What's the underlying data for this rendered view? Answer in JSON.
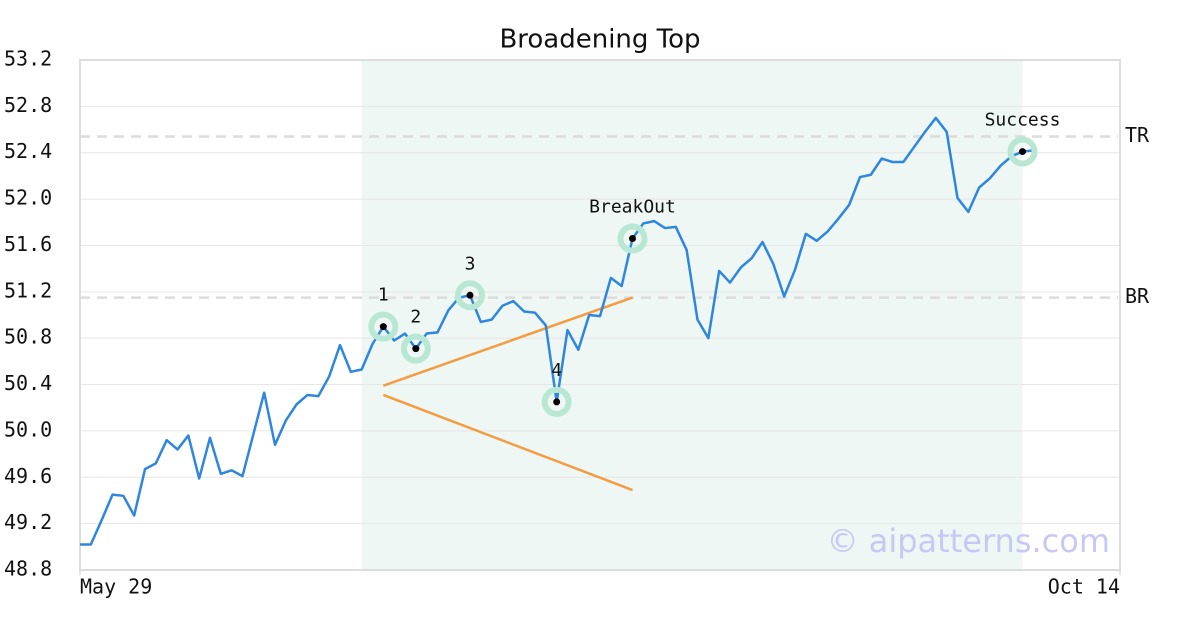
{
  "chart_data": {
    "type": "line",
    "title": "Broadening Top",
    "values": [
      49.02,
      49.02,
      49.23,
      49.45,
      49.44,
      49.27,
      49.67,
      49.72,
      49.92,
      49.84,
      49.96,
      49.59,
      49.94,
      49.63,
      49.66,
      49.61,
      49.97,
      50.33,
      49.88,
      50.09,
      50.23,
      50.31,
      50.3,
      50.47,
      50.74,
      50.51,
      50.53,
      50.75,
      50.9,
      50.78,
      50.84,
      50.71,
      50.84,
      50.85,
      51.04,
      51.15,
      51.17,
      50.94,
      50.96,
      51.08,
      51.12,
      51.03,
      51.02,
      50.91,
      50.25,
      50.87,
      50.7,
      51.0,
      50.99,
      51.32,
      51.25,
      51.66,
      51.79,
      51.81,
      51.75,
      51.76,
      51.56,
      50.96,
      50.8,
      51.38,
      51.28,
      51.41,
      51.49,
      51.63,
      51.44,
      51.16,
      51.39,
      51.7,
      51.64,
      51.72,
      51.83,
      51.95,
      52.19,
      52.21,
      52.35,
      52.32,
      52.32,
      52.45,
      52.58,
      52.7,
      52.58,
      52.01,
      51.89,
      52.1,
      52.18,
      52.29,
      52.37,
      52.41,
      52.42
    ],
    "color": "#2e86de",
    "xlim": [
      0,
      96
    ],
    "xticks": [
      {
        "value": 0,
        "label": "May 29"
      },
      {
        "value": 96,
        "label": "Oct 14"
      }
    ],
    "ylim": [
      48.8,
      53.2
    ],
    "yticks": [
      48.8,
      49.2,
      49.6,
      {
        "value": 50,
        "label": "50.0"
      },
      50.4,
      50.8,
      51.2,
      51.6,
      {
        "value": 52,
        "label": "52.0"
      },
      52.4,
      52.8,
      53.2
    ],
    "grid": true,
    "shaded": {
      "x": [
        26,
        87
      ],
      "color": "#eef7f3"
    },
    "levels": [
      {
        "label": "TR",
        "value": 52.54
      },
      {
        "label": "BR",
        "value": 51.15
      }
    ],
    "trend_color": "#f39c42",
    "trend_lines": [
      {
        "x": [
          28,
          51
        ],
        "values": [
          50.39,
          51.15
        ]
      },
      {
        "x": [
          28,
          51
        ],
        "values": [
          50.31,
          49.49
        ]
      }
    ],
    "point_color": "#b8e8d4",
    "points": [
      {
        "label": "1",
        "x": 28
      },
      {
        "label": "2",
        "x": 31
      },
      {
        "label": "3",
        "x": 36
      },
      {
        "label": "4",
        "x": 44
      },
      {
        "label": "BreakOut",
        "x": 51
      },
      {
        "label": "Success",
        "x": 87
      }
    ],
    "watermark": "© aipatterns.com"
  }
}
